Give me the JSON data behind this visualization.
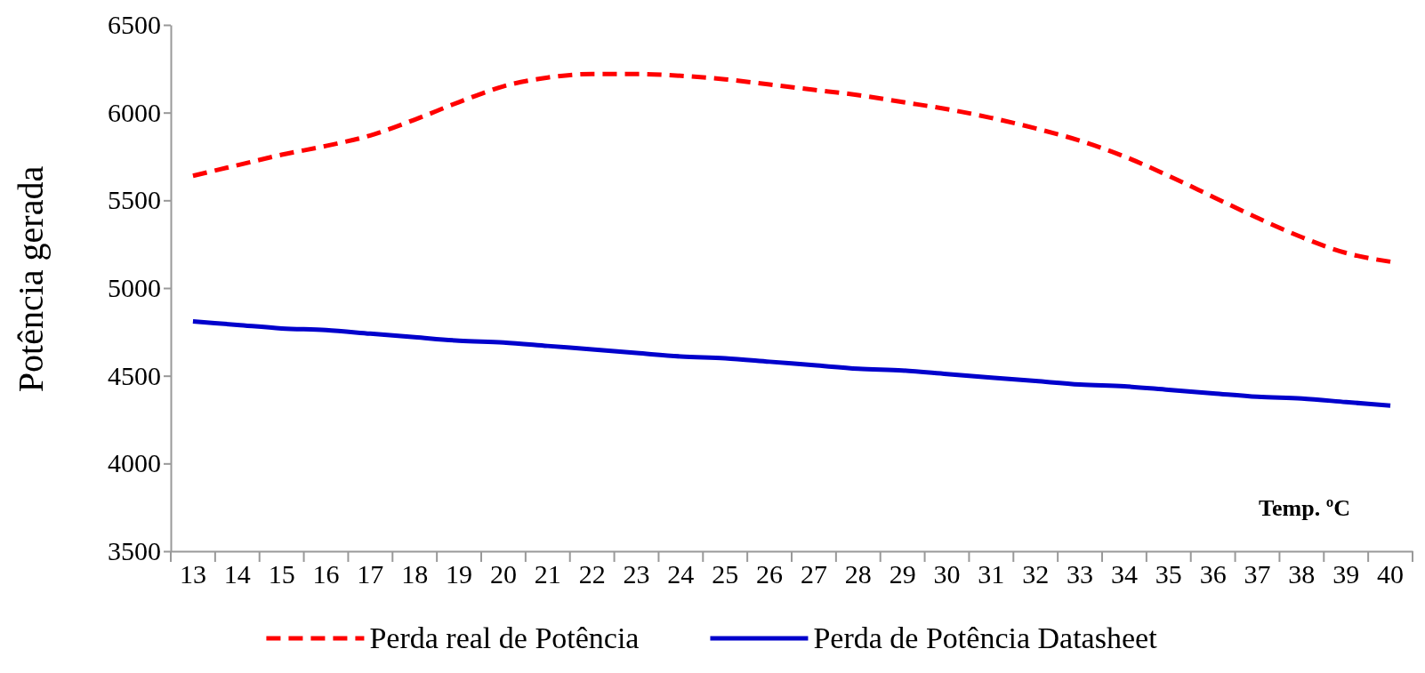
{
  "chart_data": {
    "type": "line",
    "xlabel": "Temp. ºC",
    "ylabel": "Potência gerada",
    "categories": [
      "13",
      "14",
      "15",
      "16",
      "17",
      "18",
      "19",
      "20",
      "21",
      "22",
      "23",
      "24",
      "25",
      "26",
      "27",
      "28",
      "29",
      "30",
      "31",
      "32",
      "33",
      "34",
      "35",
      "36",
      "37",
      "38",
      "39",
      "40"
    ],
    "series": [
      {
        "name": "Perda real de Potência",
        "color": "#ff0000",
        "line_style": "dashed",
        "values": [
          5640,
          5700,
          5760,
          5810,
          5870,
          5960,
          6060,
          6150,
          6200,
          6220,
          6220,
          6210,
          6190,
          6160,
          6130,
          6100,
          6060,
          6020,
          5970,
          5910,
          5840,
          5750,
          5640,
          5520,
          5400,
          5290,
          5200,
          5150
        ]
      },
      {
        "name": "Perda de Potência Datasheet",
        "color": "#0000cc",
        "line_style": "solid",
        "values": [
          4810,
          4790,
          4770,
          4760,
          4740,
          4720,
          4700,
          4690,
          4670,
          4650,
          4630,
          4610,
          4600,
          4580,
          4560,
          4540,
          4530,
          4510,
          4490,
          4470,
          4450,
          4440,
          4420,
          4400,
          4380,
          4370,
          4350,
          4330
        ]
      }
    ],
    "ylim": [
      3500,
      6500
    ],
    "yticks": [
      3500,
      4000,
      4500,
      5000,
      5500,
      6000,
      6500
    ],
    "grid": false,
    "legend": "bottom",
    "marker": "none"
  }
}
